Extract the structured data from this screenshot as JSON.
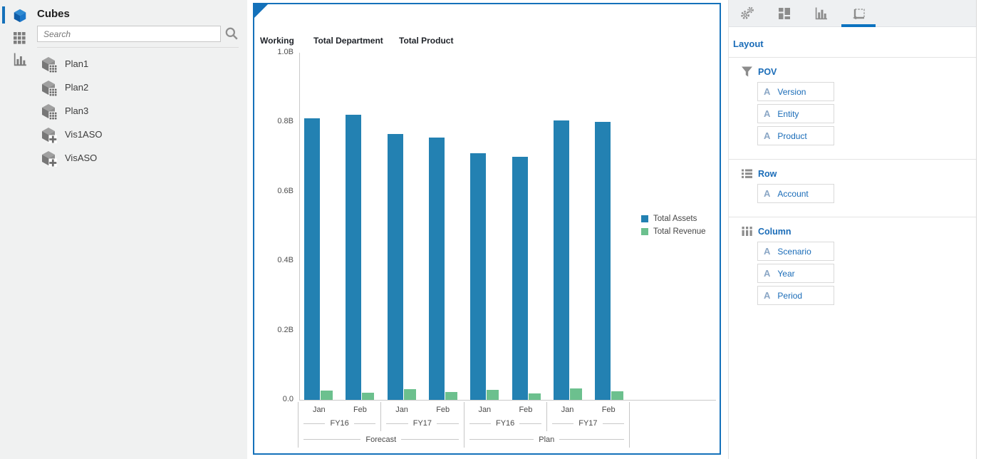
{
  "sidebar": {
    "title": "Cubes",
    "search_placeholder": "Search",
    "items": [
      {
        "label": "Plan1",
        "badge": "grid"
      },
      {
        "label": "Plan2",
        "badge": "grid"
      },
      {
        "label": "Plan3",
        "badge": "grid"
      },
      {
        "label": "Vis1ASO",
        "badge": "plus"
      },
      {
        "label": "VisASO",
        "badge": "plus"
      }
    ]
  },
  "chart_header": {
    "tabs": [
      "Working",
      "Total Department",
      "Total Product"
    ]
  },
  "chart_data": {
    "type": "bar",
    "title": "",
    "xlabel": "",
    "ylabel": "",
    "ylim": [
      0,
      1.0
    ],
    "unit": "B",
    "y_ticks": [
      "1.0B",
      "0.8B",
      "0.6B",
      "0.4B",
      "0.2B",
      "0.0"
    ],
    "grid": false,
    "legend_position": "right",
    "x_axis": {
      "level1": [
        "Jan",
        "Feb",
        "Jan",
        "Feb",
        "Jan",
        "Feb",
        "Jan",
        "Feb"
      ],
      "level2": [
        "FY16",
        "FY17",
        "FY16",
        "FY17"
      ],
      "level3": [
        "Forecast",
        "Plan"
      ]
    },
    "series": [
      {
        "name": "Total Assets",
        "color": "#2381b2",
        "values": [
          0.81,
          0.82,
          0.765,
          0.755,
          0.71,
          0.7,
          0.805,
          0.8
        ]
      },
      {
        "name": "Total Revenue",
        "color": "#6cc08e",
        "values": [
          0.027,
          0.021,
          0.031,
          0.023,
          0.028,
          0.019,
          0.033,
          0.024
        ]
      }
    ]
  },
  "right_panel": {
    "tabs": [
      {
        "icon": "gears",
        "selected": false
      },
      {
        "icon": "blocks",
        "selected": false
      },
      {
        "icon": "bar-chart",
        "selected": false
      },
      {
        "icon": "layout-canvas",
        "selected": true
      }
    ],
    "layout_label": "Layout",
    "sections": [
      {
        "icon": "filter",
        "label": "POV",
        "chips": [
          "Version",
          "Entity",
          "Product"
        ]
      },
      {
        "icon": "rows",
        "label": "Row",
        "chips": [
          "Account"
        ]
      },
      {
        "icon": "columns",
        "label": "Column",
        "chips": [
          "Scenario",
          "Year",
          "Period"
        ]
      }
    ]
  },
  "colors": {
    "accent_blue": "#1471ba",
    "link_blue": "#1a6cb8",
    "tab_underline": "#0b72c0",
    "sidebar_bg": "#f0f1f1",
    "toolbar_bg": "#eef0f2",
    "bar_blue": "#2381b2",
    "bar_green": "#6cc08e",
    "icon_gray": "#8c8c8c"
  }
}
